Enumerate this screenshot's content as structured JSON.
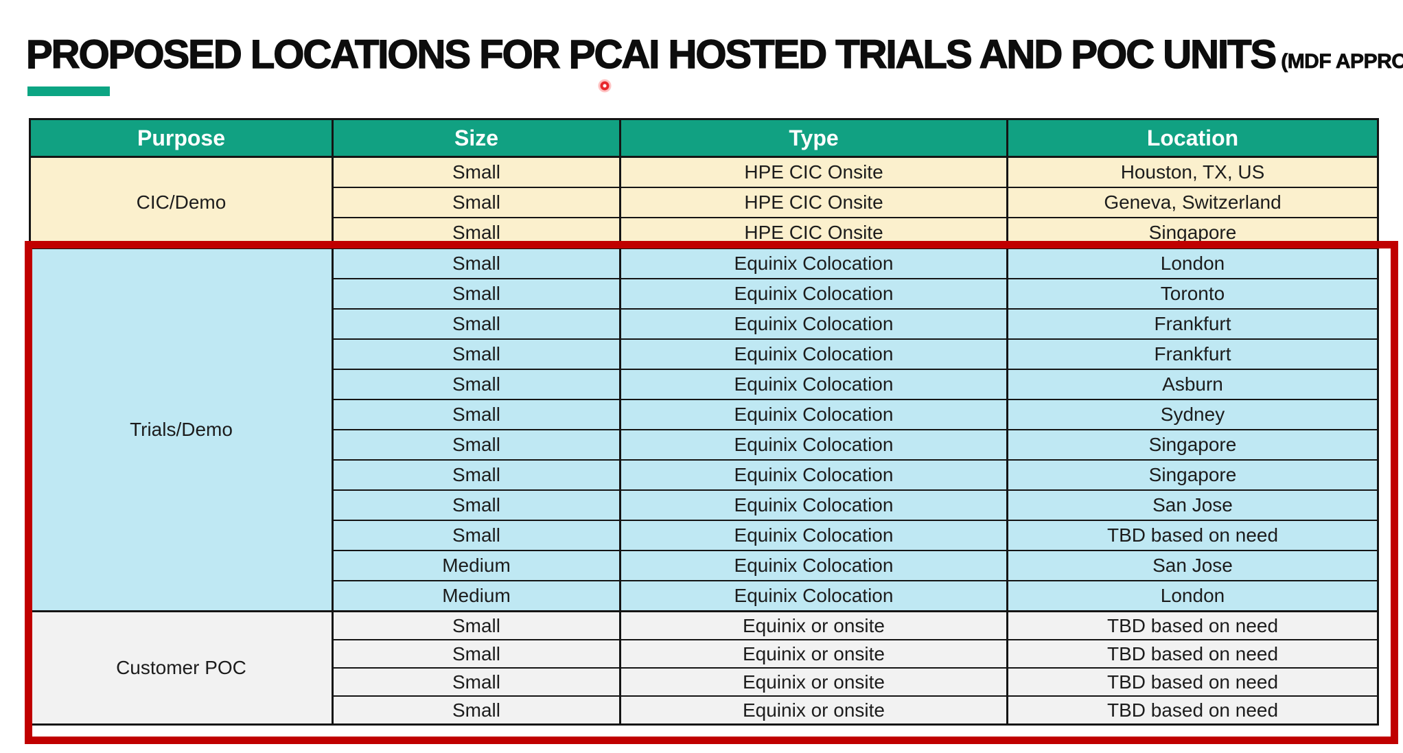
{
  "title": {
    "main": "PROPOSED LOCATIONS FOR PCAI HOSTED TRIALS AND POC UNITS",
    "suffix": "(MDF APPROVED)"
  },
  "colors": {
    "title_color": "#0d0d0d",
    "accent_green": "#0ca583",
    "header_bg": "#11a182",
    "header_text": "#ffffff",
    "cream": "#fbf0cd",
    "light_blue": "#bfe8f3",
    "light_gray": "#f2f2f2",
    "line_black": "#141414",
    "cell_text": "#1c1c1c",
    "red_box": "#c00000",
    "laser_red": "#e8262a"
  },
  "table": {
    "columns": [
      "Purpose",
      "Size",
      "Type",
      "Location"
    ],
    "sections": [
      {
        "purpose": "CIC/Demo",
        "theme": "cic",
        "rows": [
          [
            "Small",
            "HPE CIC Onsite",
            "Houston, TX, US"
          ],
          [
            "Small",
            "HPE CIC Onsite",
            "Geneva, Switzerland"
          ],
          [
            "Small",
            "HPE CIC Onsite",
            "Singapore"
          ]
        ]
      },
      {
        "purpose": "Trials/Demo",
        "theme": "trials",
        "rows": [
          [
            "Small",
            "Equinix Colocation",
            "London"
          ],
          [
            "Small",
            "Equinix Colocation",
            "Toronto"
          ],
          [
            "Small",
            "Equinix Colocation",
            "Frankfurt"
          ],
          [
            "Small",
            "Equinix Colocation",
            "Frankfurt"
          ],
          [
            "Small",
            "Equinix Colocation",
            "Asburn"
          ],
          [
            "Small",
            "Equinix Colocation",
            "Sydney"
          ],
          [
            "Small",
            "Equinix Colocation",
            "Singapore"
          ],
          [
            "Small",
            "Equinix Colocation",
            "Singapore"
          ],
          [
            "Small",
            "Equinix Colocation",
            "San Jose"
          ],
          [
            "Small",
            "Equinix Colocation",
            "TBD based on need"
          ],
          [
            "Medium",
            "Equinix Colocation",
            "San Jose"
          ],
          [
            "Medium",
            "Equinix Colocation",
            "London"
          ]
        ]
      },
      {
        "purpose": "Customer POC",
        "theme": "poc",
        "rows": [
          [
            "Small",
            "Equinix or onsite",
            "TBD based on need"
          ],
          [
            "Small",
            "Equinix or onsite",
            "TBD based on need"
          ],
          [
            "Small",
            "Equinix or onsite",
            "TBD based on need"
          ],
          [
            "Small",
            "Equinix or onsite",
            "TBD based on need"
          ]
        ]
      }
    ]
  }
}
